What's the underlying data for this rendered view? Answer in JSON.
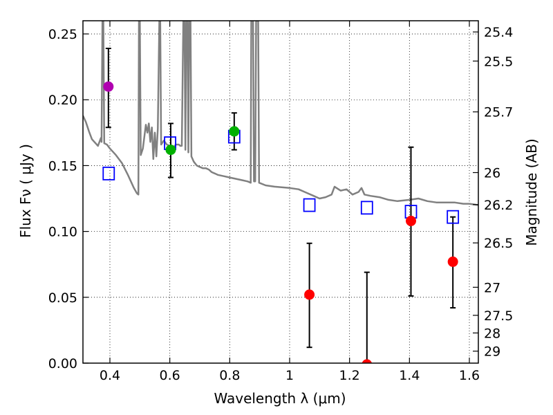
{
  "chart_data": {
    "type": "scatter",
    "xlabel": "Wavelength  λ (μm)",
    "ylabel": "Flux  Fν ( μJy )",
    "y2label": "Magnitude (AB)",
    "xlim": [
      0.31,
      1.63
    ],
    "ylim": [
      0.0,
      0.26
    ],
    "grid": true,
    "x_ticks": [
      0.4,
      0.6,
      0.8,
      1.0,
      1.2,
      1.4,
      1.6
    ],
    "x_tick_labels": [
      "0.4",
      "0.6",
      "0.8",
      "1",
      "1.2",
      "1.4",
      "1.6"
    ],
    "y_ticks": [
      0.0,
      0.05,
      0.1,
      0.15,
      0.2,
      0.25
    ],
    "y_tick_labels": [
      "0.00",
      "0.05",
      "0.10",
      "0.15",
      "0.20",
      "0.25"
    ],
    "mag_ticks": [
      {
        "label": "25.4",
        "flux": 0.2515
      },
      {
        "label": "25.5",
        "flux": 0.2294
      },
      {
        "label": "25.7",
        "flux": 0.1908
      },
      {
        "label": "26",
        "flux": 0.1447
      },
      {
        "label": "26.2",
        "flux": 0.1204
      },
      {
        "label": "26.5",
        "flux": 0.0913
      },
      {
        "label": "27",
        "flux": 0.0576
      },
      {
        "label": "27.5",
        "flux": 0.0363
      },
      {
        "label": "28",
        "flux": 0.0229
      },
      {
        "label": "29",
        "flux": 0.0091
      }
    ],
    "measurements": [
      {
        "name": "violet",
        "color": "#b000b0",
        "x": 0.395,
        "y": 0.21,
        "ylo": 0.179,
        "yhi": 0.239
      },
      {
        "name": "green-1",
        "color": "#00b000",
        "x": 0.603,
        "y": 0.162,
        "ylo": 0.141,
        "yhi": 0.182
      },
      {
        "name": "green-2",
        "color": "#00b000",
        "x": 0.815,
        "y": 0.176,
        "ylo": 0.162,
        "yhi": 0.19
      },
      {
        "name": "red-1",
        "color": "#ff0000",
        "x": 1.066,
        "y": 0.052,
        "ylo": 0.012,
        "yhi": 0.091
      },
      {
        "name": "red-2",
        "color": "#ff0000",
        "x": 1.258,
        "y": -0.001,
        "ylo": -0.005,
        "yhi": 0.069
      },
      {
        "name": "red-3",
        "color": "#ff0000",
        "x": 1.405,
        "y": 0.108,
        "ylo": 0.051,
        "yhi": 0.164
      },
      {
        "name": "red-4",
        "color": "#ff0000",
        "x": 1.545,
        "y": 0.077,
        "ylo": 0.042,
        "yhi": 0.111
      }
    ],
    "model_points": [
      {
        "x": 0.396,
        "y": 0.144
      },
      {
        "x": 0.601,
        "y": 0.167
      },
      {
        "x": 0.815,
        "y": 0.172
      },
      {
        "x": 1.066,
        "y": 0.12
      },
      {
        "x": 1.258,
        "y": 0.118
      },
      {
        "x": 1.405,
        "y": 0.115
      },
      {
        "x": 1.545,
        "y": 0.111
      }
    ],
    "spectrum": {
      "color": "#808080",
      "points": [
        [
          0.31,
          0.188
        ],
        [
          0.32,
          0.183
        ],
        [
          0.33,
          0.176
        ],
        [
          0.34,
          0.17
        ],
        [
          0.36,
          0.165
        ],
        [
          0.37,
          0.171
        ],
        [
          0.372,
          0.168
        ],
        [
          0.375,
          0.26
        ],
        [
          0.378,
          0.26
        ],
        [
          0.381,
          0.167
        ],
        [
          0.39,
          0.166
        ],
        [
          0.4,
          0.163
        ],
        [
          0.42,
          0.158
        ],
        [
          0.44,
          0.152
        ],
        [
          0.46,
          0.143
        ],
        [
          0.48,
          0.133
        ],
        [
          0.49,
          0.129
        ],
        [
          0.495,
          0.128
        ],
        [
          0.497,
          0.26
        ],
        [
          0.5,
          0.26
        ],
        [
          0.503,
          0.158
        ],
        [
          0.51,
          0.163
        ],
        [
          0.52,
          0.181
        ],
        [
          0.525,
          0.175
        ],
        [
          0.53,
          0.182
        ],
        [
          0.535,
          0.168
        ],
        [
          0.54,
          0.179
        ],
        [
          0.545,
          0.155
        ],
        [
          0.55,
          0.175
        ],
        [
          0.555,
          0.157
        ],
        [
          0.56,
          0.178
        ],
        [
          0.565,
          0.26
        ],
        [
          0.568,
          0.26
        ],
        [
          0.571,
          0.166
        ],
        [
          0.58,
          0.169
        ],
        [
          0.59,
          0.166
        ],
        [
          0.6,
          0.165
        ],
        [
          0.61,
          0.163
        ],
        [
          0.62,
          0.166
        ],
        [
          0.625,
          0.166
        ],
        [
          0.63,
          0.166
        ],
        [
          0.635,
          0.165
        ],
        [
          0.64,
          0.165
        ],
        [
          0.645,
          0.26
        ],
        [
          0.649,
          0.26
        ],
        [
          0.652,
          0.162
        ],
        [
          0.655,
          0.26
        ],
        [
          0.659,
          0.26
        ],
        [
          0.662,
          0.16
        ],
        [
          0.665,
          0.26
        ],
        [
          0.669,
          0.26
        ],
        [
          0.672,
          0.157
        ],
        [
          0.68,
          0.153
        ],
        [
          0.69,
          0.15
        ],
        [
          0.7,
          0.149
        ],
        [
          0.71,
          0.148
        ],
        [
          0.72,
          0.148
        ],
        [
          0.73,
          0.147
        ],
        [
          0.74,
          0.145
        ],
        [
          0.75,
          0.144
        ],
        [
          0.76,
          0.143
        ],
        [
          0.78,
          0.142
        ],
        [
          0.8,
          0.141
        ],
        [
          0.82,
          0.14
        ],
        [
          0.84,
          0.139
        ],
        [
          0.86,
          0.138
        ],
        [
          0.87,
          0.137
        ],
        [
          0.872,
          0.26
        ],
        [
          0.878,
          0.26
        ],
        [
          0.881,
          0.138
        ],
        [
          0.885,
          0.138
        ],
        [
          0.888,
          0.26
        ],
        [
          0.895,
          0.26
        ],
        [
          0.898,
          0.137
        ],
        [
          0.92,
          0.135
        ],
        [
          0.95,
          0.134
        ],
        [
          1.0,
          0.133
        ],
        [
          1.03,
          0.132
        ],
        [
          1.05,
          0.13
        ],
        [
          1.06,
          0.129
        ],
        [
          1.08,
          0.127
        ],
        [
          1.1,
          0.125
        ],
        [
          1.12,
          0.126
        ],
        [
          1.14,
          0.128
        ],
        [
          1.15,
          0.134
        ],
        [
          1.17,
          0.131
        ],
        [
          1.19,
          0.132
        ],
        [
          1.21,
          0.128
        ],
        [
          1.23,
          0.13
        ],
        [
          1.24,
          0.133
        ],
        [
          1.25,
          0.128
        ],
        [
          1.27,
          0.127
        ],
        [
          1.3,
          0.126
        ],
        [
          1.33,
          0.124
        ],
        [
          1.36,
          0.123
        ],
        [
          1.4,
          0.124
        ],
        [
          1.43,
          0.125
        ],
        [
          1.46,
          0.123
        ],
        [
          1.49,
          0.122
        ],
        [
          1.52,
          0.122
        ],
        [
          1.55,
          0.122
        ],
        [
          1.58,
          0.121
        ],
        [
          1.6,
          0.121
        ],
        [
          1.63,
          0.12
        ]
      ]
    }
  }
}
